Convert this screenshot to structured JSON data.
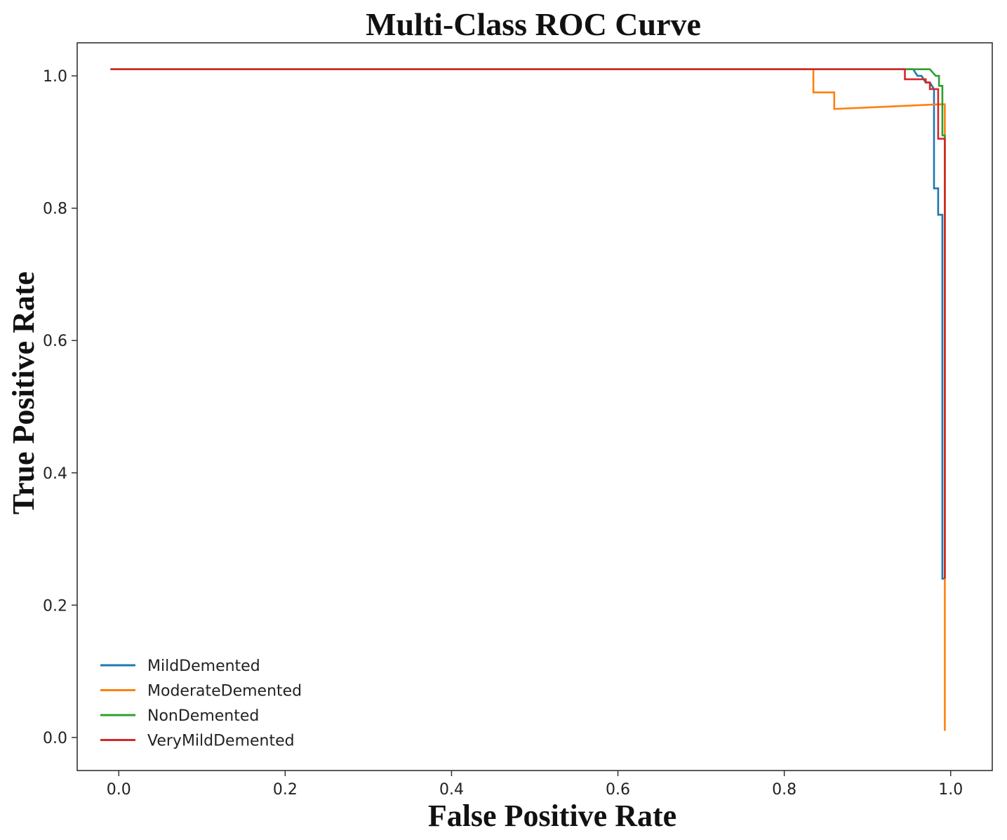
{
  "chart_data": {
    "type": "line",
    "title": "Multi-Class ROC Curve",
    "xlabel": "False Positive Rate",
    "ylabel": "True Positive Rate",
    "xlim": [
      -0.05,
      1.05
    ],
    "ylim": [
      -0.05,
      1.05
    ],
    "xticks": [
      0.0,
      0.2,
      0.4,
      0.6,
      0.8,
      1.0
    ],
    "xtick_labels": [
      "0.0",
      "0.2",
      "0.4",
      "0.6",
      "0.8",
      "1.0"
    ],
    "yticks": [
      0.0,
      0.2,
      0.4,
      0.6,
      0.8,
      1.0
    ],
    "ytick_labels": [
      "0.0",
      "0.2",
      "0.4",
      "0.6",
      "0.8",
      "1.0"
    ],
    "grid": false,
    "legend_position": "lower-left",
    "series": [
      {
        "name": "MildDemented",
        "color": "#1f77b4",
        "x": [
          -0.01,
          0.955,
          0.96,
          0.965,
          0.97,
          0.975,
          0.98,
          0.98,
          0.985,
          0.985,
          0.99,
          0.99,
          0.993
        ],
        "y": [
          1.01,
          1.01,
          1.0,
          1.0,
          0.99,
          0.99,
          0.98,
          0.83,
          0.83,
          0.79,
          0.79,
          0.24,
          0.24
        ]
      },
      {
        "name": "ModerateDemented",
        "color": "#ff7f0e",
        "x": [
          -0.01,
          0.835,
          0.835,
          0.86,
          0.86,
          0.985,
          0.993,
          0.993
        ],
        "y": [
          1.01,
          1.01,
          0.975,
          0.975,
          0.95,
          0.957,
          0.957,
          0.01
        ]
      },
      {
        "name": "NonDemented",
        "color": "#2ca02c",
        "x": [
          -0.01,
          0.975,
          0.982,
          0.986,
          0.986,
          0.99,
          0.99,
          0.993,
          0.993
        ],
        "y": [
          1.01,
          1.01,
          1.0,
          1.0,
          0.985,
          0.985,
          0.91,
          0.91,
          0.24
        ]
      },
      {
        "name": "VeryMildDemented",
        "color": "#d62728",
        "x": [
          -0.01,
          0.945,
          0.945,
          0.97,
          0.97,
          0.975,
          0.975,
          0.985,
          0.985,
          0.993,
          0.993
        ],
        "y": [
          1.01,
          1.01,
          0.995,
          0.995,
          0.99,
          0.99,
          0.98,
          0.98,
          0.905,
          0.905,
          0.24
        ]
      }
    ]
  }
}
